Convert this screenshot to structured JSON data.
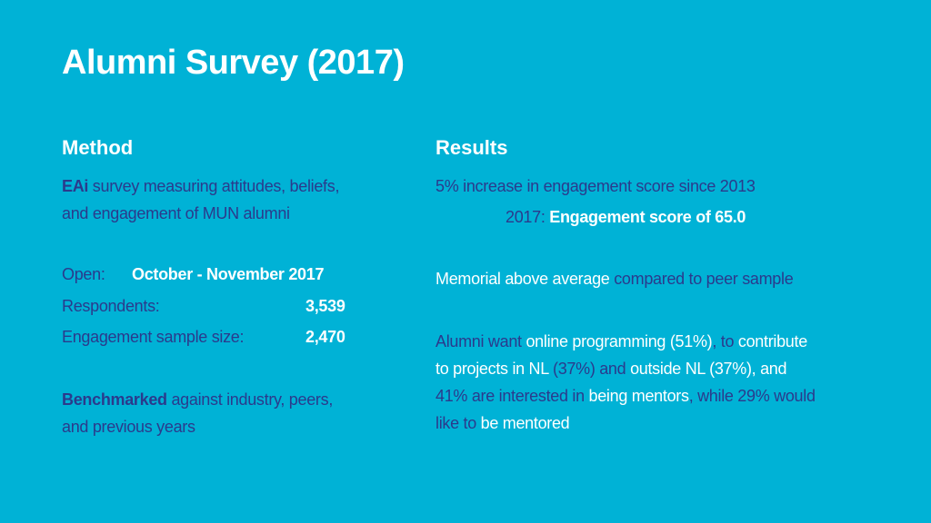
{
  "title": "Alumni Survey (2017)",
  "method": {
    "heading": "Method",
    "intro_strong": "EAi",
    "intro_line1": " survey measuring attitudes, beliefs,",
    "intro_line2": "and engagement of MUN alumni",
    "open_label": "Open:",
    "open_value": "October - November 2017",
    "respondents_label": "Respondents:",
    "respondents_value": "3,539",
    "sample_label": "Engagement sample size:",
    "sample_value": "2,470",
    "bench_strong": "Benchmarked",
    "bench_line1": " against industry, peers,",
    "bench_line2": "and previous years"
  },
  "results": {
    "heading": "Results",
    "increase": "5% increase in engagement score since 2013",
    "score_year": "2017:",
    "score_text": "Engagement score of 65.0",
    "memorial_a": "Memorial above average ",
    "memorial_b": "compared to peer sample",
    "alumni": {
      "s1": "Alumni want ",
      "s2": "online programming (51%)",
      "s3": ", to ",
      "s4": "contribute",
      "s5": "to projects in NL ",
      "s6": "(37%) and ",
      "s7": "outside NL (37%), and",
      "s8": "41% are interested in ",
      "s9": "being mentors",
      "s10": ", while 29% would",
      "s11": "like to ",
      "s12": "be mentored"
    }
  },
  "colors": {
    "background": "#00b2d6",
    "text_dark": "#2b3a8c",
    "text_light": "#ffffff"
  }
}
